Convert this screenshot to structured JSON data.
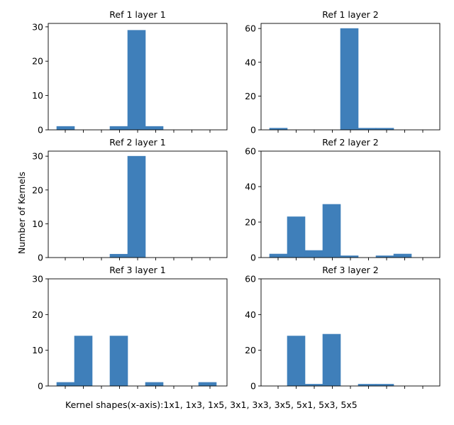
{
  "figure": {
    "ylabel": "Number of Kernels",
    "caption": "Kernel shapes(x-axis):1x1, 1x3, 1x5, 3x1, 3x3, 3x5, 5x1, 5x3, 5x5"
  },
  "colors": {
    "bar": "#3f7fba",
    "axis": "#000000",
    "background": "#ffffff"
  },
  "chart_data": [
    {
      "type": "bar",
      "title": "Ref 1 layer 1",
      "categories": [
        "1x1",
        "1x3",
        "1x5",
        "3x1",
        "3x3",
        "3x5",
        "5x1",
        "5x3",
        "5x5"
      ],
      "values": [
        1,
        0,
        0,
        1,
        29,
        1,
        0,
        0,
        0
      ],
      "ylim": [
        0,
        31
      ],
      "yticks": [
        0,
        10,
        20,
        30
      ],
      "xlabel": "",
      "ylabel": ""
    },
    {
      "type": "bar",
      "title": "Ref 1 layer 2",
      "categories": [
        "1x1",
        "1x3",
        "1x5",
        "3x1",
        "3x3",
        "3x5",
        "5x1",
        "5x3",
        "5x5"
      ],
      "values": [
        1,
        0,
        0,
        0,
        60,
        1,
        1,
        0,
        0
      ],
      "ylim": [
        0,
        63
      ],
      "yticks": [
        0,
        20,
        40,
        60
      ],
      "xlabel": "",
      "ylabel": ""
    },
    {
      "type": "bar",
      "title": "Ref 2 layer 1",
      "categories": [
        "1x1",
        "1x3",
        "1x5",
        "3x1",
        "3x3",
        "3x5",
        "5x1",
        "5x3",
        "5x5"
      ],
      "values": [
        0,
        0,
        0,
        1,
        30,
        0,
        0,
        0,
        0
      ],
      "ylim": [
        0,
        31.5
      ],
      "yticks": [
        0,
        10,
        20,
        30
      ],
      "xlabel": "",
      "ylabel": ""
    },
    {
      "type": "bar",
      "title": "Ref 2 layer 2",
      "categories": [
        "1x1",
        "1x3",
        "1x5",
        "3x1",
        "3x3",
        "3x5",
        "5x1",
        "5x3",
        "5x5"
      ],
      "values": [
        2,
        23,
        4,
        30,
        1,
        0,
        1,
        2,
        0
      ],
      "ylim": [
        0,
        60
      ],
      "yticks": [
        0,
        20,
        40,
        60
      ],
      "xlabel": "",
      "ylabel": ""
    },
    {
      "type": "bar",
      "title": "Ref 3 layer 1",
      "categories": [
        "1x1",
        "1x3",
        "1x5",
        "3x1",
        "3x3",
        "3x5",
        "5x1",
        "5x3",
        "5x5"
      ],
      "values": [
        1,
        14,
        0,
        14,
        0,
        1,
        0,
        0,
        1
      ],
      "ylim": [
        0,
        30
      ],
      "yticks": [
        0,
        10,
        20,
        30
      ],
      "xlabel": "",
      "ylabel": ""
    },
    {
      "type": "bar",
      "title": "Ref 3 layer 2",
      "categories": [
        "1x1",
        "1x3",
        "1x5",
        "3x1",
        "3x3",
        "3x5",
        "5x1",
        "5x3",
        "5x5"
      ],
      "values": [
        0,
        28,
        1,
        29,
        0,
        1,
        1,
        0,
        0
      ],
      "ylim": [
        0,
        60
      ],
      "yticks": [
        0,
        20,
        40,
        60
      ],
      "xlabel": "",
      "ylabel": ""
    }
  ]
}
